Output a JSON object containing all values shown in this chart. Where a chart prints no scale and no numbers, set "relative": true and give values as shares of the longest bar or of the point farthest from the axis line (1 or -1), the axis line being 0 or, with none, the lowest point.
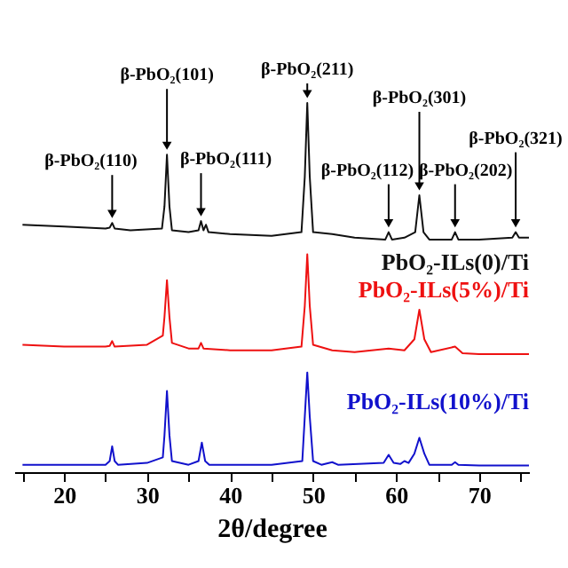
{
  "chart_data": {
    "type": "line",
    "relative": true,
    "xlabel": "2θ/degree",
    "xlim": [
      14,
      76
    ],
    "xticks": [
      {
        "value": 15,
        "label": null
      },
      20,
      {
        "value": 25,
        "label": null
      },
      30,
      {
        "value": 35,
        "label": null
      },
      40,
      {
        "value": 45,
        "label": null
      },
      50,
      {
        "value": 55,
        "label": null
      },
      60,
      {
        "value": 65,
        "label": null
      },
      70,
      {
        "value": 75,
        "label": null
      }
    ],
    "series": [
      {
        "name": "PbO₂-ILs(0)/Ti",
        "color": "#111111",
        "x": [
          15,
          20,
          25,
          25.5,
          25.8,
          26.1,
          28,
          31.8,
          32.1,
          32.4,
          32.7,
          33,
          35,
          36.2,
          36.5,
          36.8,
          37.1,
          37.4,
          40,
          45,
          48.6,
          49,
          49.3,
          49.6,
          50,
          52.3,
          55,
          58.7,
          59.1,
          59.5,
          61,
          62.3,
          62.8,
          63.3,
          64,
          66.7,
          67.1,
          67.5,
          70,
          74,
          74.4,
          74.8,
          76
        ],
        "values": [
          0.67,
          0.665,
          0.66,
          0.662,
          0.675,
          0.66,
          0.655,
          0.66,
          0.72,
          0.86,
          0.72,
          0.655,
          0.65,
          0.655,
          0.68,
          0.655,
          0.67,
          0.65,
          0.645,
          0.64,
          0.65,
          0.8,
          1.0,
          0.8,
          0.65,
          0.645,
          0.635,
          0.63,
          0.65,
          0.63,
          0.635,
          0.65,
          0.75,
          0.65,
          0.63,
          0.63,
          0.65,
          0.63,
          0.63,
          0.635,
          0.65,
          0.635,
          0.635
        ]
      },
      {
        "name": "PbO₂-ILs(5%)/Ti",
        "color": "#ee1111",
        "x": [
          15,
          20,
          25,
          25.5,
          25.8,
          26.1,
          30,
          31.9,
          32.1,
          32.4,
          32.7,
          33,
          35,
          36.2,
          36.5,
          36.8,
          40,
          45,
          48.6,
          49,
          49.3,
          49.6,
          50,
          52.3,
          55,
          59.1,
          61,
          62.2,
          62.8,
          63.4,
          64.2,
          67.1,
          68,
          70,
          76
        ],
        "values": [
          0.345,
          0.34,
          0.34,
          0.342,
          0.355,
          0.34,
          0.345,
          0.37,
          0.42,
          0.52,
          0.42,
          0.35,
          0.335,
          0.335,
          0.35,
          0.335,
          0.33,
          0.33,
          0.34,
          0.45,
          0.59,
          0.45,
          0.345,
          0.33,
          0.325,
          0.335,
          0.33,
          0.36,
          0.44,
          0.36,
          0.325,
          0.34,
          0.322,
          0.32,
          0.32
        ]
      },
      {
        "name": "PbO₂-ILs(10%)/Ti",
        "color": "#1111cc",
        "x": [
          15,
          20,
          25,
          25.5,
          25.8,
          26.1,
          26.5,
          30,
          31.9,
          32.1,
          32.4,
          32.7,
          33,
          35,
          36.2,
          36.6,
          37,
          37.5,
          40,
          45,
          48.7,
          49,
          49.3,
          49.6,
          50,
          51,
          52.3,
          53,
          58.5,
          59.1,
          59.7,
          60.5,
          61,
          61.5,
          62.2,
          62.8,
          63.4,
          64,
          66.7,
          67.1,
          67.5,
          70,
          76
        ],
        "values": [
          0.02,
          0.02,
          0.02,
          0.03,
          0.07,
          0.03,
          0.02,
          0.025,
          0.04,
          0.1,
          0.22,
          0.1,
          0.03,
          0.02,
          0.03,
          0.08,
          0.03,
          0.02,
          0.02,
          0.02,
          0.03,
          0.15,
          0.27,
          0.15,
          0.03,
          0.02,
          0.027,
          0.02,
          0.025,
          0.047,
          0.025,
          0.022,
          0.03,
          0.025,
          0.05,
          0.093,
          0.05,
          0.02,
          0.02,
          0.027,
          0.02,
          0.018,
          0.018
        ]
      }
    ],
    "annotations": [
      {
        "text": "β-PbO₂(110)",
        "x": 25.8,
        "y": 0.675
      },
      {
        "text": "β-PbO₂(101)",
        "x": 32.4,
        "y": 0.86
      },
      {
        "text": "β-PbO₂(111)",
        "x": 36.5,
        "y": 0.68
      },
      {
        "text": "β-PbO₂(211)",
        "x": 49.3,
        "y": 1.0
      },
      {
        "text": "β-PbO₂(112)",
        "x": 59.1,
        "y": 0.65
      },
      {
        "text": "β-PbO₂(301)",
        "x": 62.8,
        "y": 0.75
      },
      {
        "text": "β-PbO₂(202)",
        "x": 67.1,
        "y": 0.65
      },
      {
        "text": "β-PbO₂(321)",
        "x": 74.4,
        "y": 0.65
      }
    ]
  }
}
